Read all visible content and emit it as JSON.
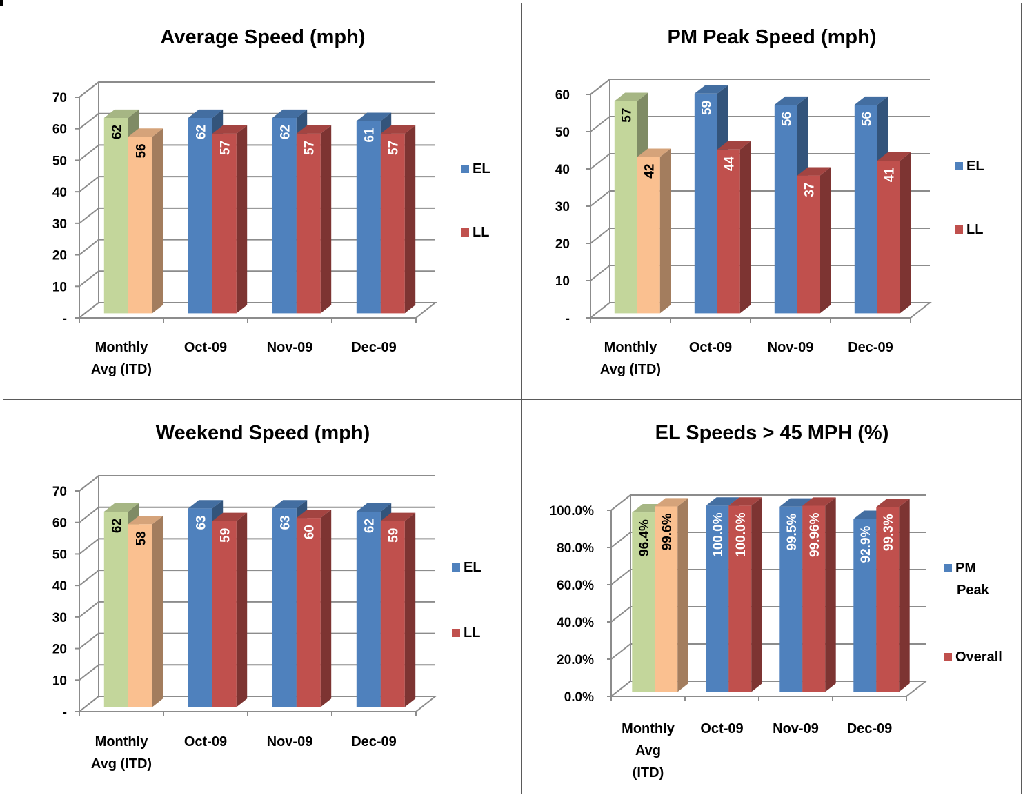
{
  "chart_data": [
    {
      "type": "bar",
      "title": "Average Speed (mph)",
      "categories": [
        "Monthly Avg (ITD)",
        "Oct-09",
        "Nov-09",
        "Dec-09"
      ],
      "category_lines": [
        [
          "Monthly",
          "Avg (ITD)"
        ],
        [
          "Oct-09"
        ],
        [
          "Nov-09"
        ],
        [
          "Dec-09"
        ]
      ],
      "series": [
        {
          "name": "EL",
          "values": [
            62,
            62,
            62,
            61
          ],
          "labels": [
            "62",
            "62",
            "62",
            "61"
          ],
          "color": "#4F81BD"
        },
        {
          "name": "LL",
          "values": [
            56,
            57,
            57,
            57
          ],
          "labels": [
            "56",
            "57",
            "57",
            "57"
          ],
          "color": "#C0504D"
        }
      ],
      "first_category_colors": [
        "#C3D69B",
        "#FAC090"
      ],
      "ylim": [
        0,
        70
      ],
      "yticks": [
        0,
        10,
        20,
        30,
        40,
        50,
        60,
        70
      ],
      "ytick_labels": [
        "-",
        "10",
        "20",
        "30",
        "40",
        "50",
        "60",
        "70"
      ],
      "legend_position": "right",
      "grid": true
    },
    {
      "type": "bar",
      "title": "PM Peak Speed (mph)",
      "categories": [
        "Monthly Avg (ITD)",
        "Oct-09",
        "Nov-09",
        "Dec-09"
      ],
      "category_lines": [
        [
          "Monthly",
          "Avg (ITD)"
        ],
        [
          "Oct-09"
        ],
        [
          "Nov-09"
        ],
        [
          "Dec-09"
        ]
      ],
      "series": [
        {
          "name": "EL",
          "values": [
            57,
            59,
            56,
            56
          ],
          "labels": [
            "57",
            "59",
            "56",
            "56"
          ],
          "color": "#4F81BD"
        },
        {
          "name": "LL",
          "values": [
            42,
            44,
            37,
            41
          ],
          "labels": [
            "42",
            "44",
            "37",
            "41"
          ],
          "color": "#C0504D"
        }
      ],
      "first_category_colors": [
        "#C3D69B",
        "#FAC090"
      ],
      "ylim": [
        0,
        60
      ],
      "yticks": [
        0,
        10,
        20,
        30,
        40,
        50,
        60
      ],
      "ytick_labels": [
        "-",
        "10",
        "20",
        "30",
        "40",
        "50",
        "60"
      ],
      "legend_position": "right",
      "grid": true
    },
    {
      "type": "bar",
      "title": "Weekend Speed (mph)",
      "categories": [
        "Monthly Avg (ITD)",
        "Oct-09",
        "Nov-09",
        "Dec-09"
      ],
      "category_lines": [
        [
          "Monthly",
          "Avg (ITD)"
        ],
        [
          "Oct-09"
        ],
        [
          "Nov-09"
        ],
        [
          "Dec-09"
        ]
      ],
      "series": [
        {
          "name": "EL",
          "values": [
            62,
            63,
            63,
            62
          ],
          "labels": [
            "62",
            "63",
            "63",
            "62"
          ],
          "color": "#4F81BD"
        },
        {
          "name": "LL",
          "values": [
            58,
            59,
            60,
            59
          ],
          "labels": [
            "58",
            "59",
            "60",
            "59"
          ],
          "color": "#C0504D"
        }
      ],
      "first_category_colors": [
        "#C3D69B",
        "#FAC090"
      ],
      "ylim": [
        0,
        70
      ],
      "yticks": [
        0,
        10,
        20,
        30,
        40,
        50,
        60,
        70
      ],
      "ytick_labels": [
        "-",
        "10",
        "20",
        "30",
        "40",
        "50",
        "60",
        "70"
      ],
      "legend_position": "right",
      "grid": true
    },
    {
      "type": "bar",
      "title": "EL Speeds > 45 MPH (%)",
      "categories": [
        "Monthly Avg (ITD)",
        "Oct-09",
        "Nov-09",
        "Dec-09"
      ],
      "category_lines": [
        [
          "Monthly",
          "Avg",
          "(ITD)"
        ],
        [
          "Oct-09"
        ],
        [
          "Nov-09"
        ],
        [
          "Dec-09"
        ]
      ],
      "series": [
        {
          "name": "PM Peak",
          "name_lines": [
            "PM",
            "Peak"
          ],
          "values": [
            96.4,
            100.0,
            99.5,
            92.9
          ],
          "labels": [
            "96.4%",
            "100.0%",
            "99.5%",
            "92.9%"
          ],
          "color": "#4F81BD"
        },
        {
          "name": "Overall",
          "name_lines": [
            "Overall"
          ],
          "values": [
            99.6,
            100.0,
            99.96,
            99.3
          ],
          "labels": [
            "99.6%",
            "100.0%",
            "99.96%",
            "99.3%"
          ],
          "color": "#C0504D"
        }
      ],
      "first_category_colors": [
        "#C3D69B",
        "#FAC090"
      ],
      "ylim": [
        0,
        100
      ],
      "yticks": [
        0,
        20,
        40,
        60,
        80,
        100
      ],
      "ytick_labels": [
        "0.0%",
        "20.0%",
        "40.0%",
        "60.0%",
        "80.0%",
        "100.0%"
      ],
      "legend_position": "right",
      "grid": true
    }
  ]
}
